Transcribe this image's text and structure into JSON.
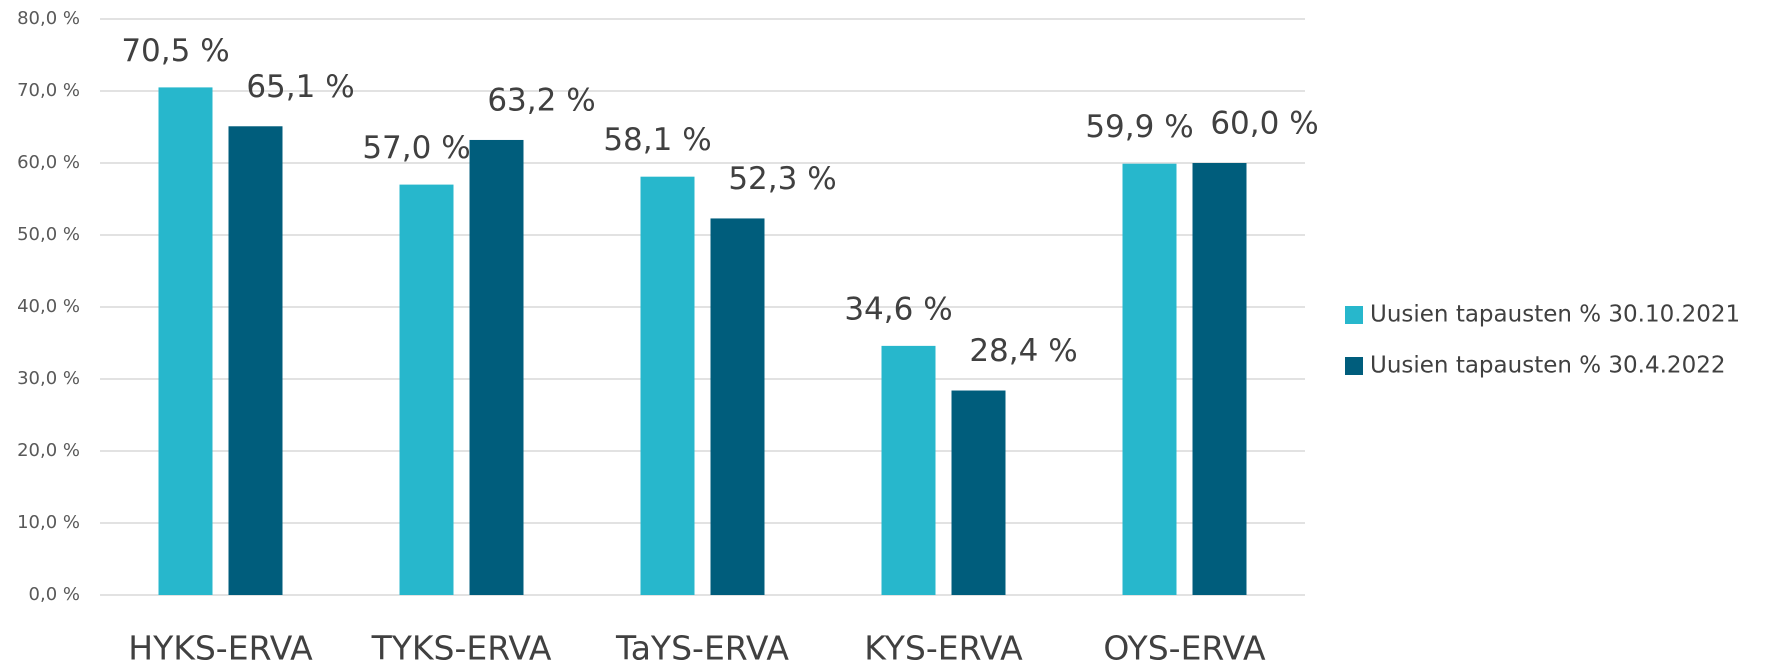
{
  "chart_data": {
    "type": "bar",
    "categories": [
      "HYKS-ERVA",
      "TYKS-ERVA",
      "TaYS-ERVA",
      "KYS-ERVA",
      "OYS-ERVA"
    ],
    "series": [
      {
        "name": "Uusien tapausten % 30.10.2021",
        "color": "#27b7cc",
        "values": [
          70.5,
          57.0,
          58.1,
          34.6,
          59.9
        ],
        "value_labels": [
          "70,5 %",
          "57,0 %",
          "58,1 %",
          "34,6 %",
          "59,9 %"
        ]
      },
      {
        "name": "Uusien tapausten % 30.4.2022",
        "color": "#005d7c",
        "values": [
          65.1,
          63.2,
          52.3,
          28.4,
          60.0
        ],
        "value_labels": [
          "65,1 %",
          "63,2 %",
          "52,3 %",
          "28,4 %",
          "60,0 %"
        ]
      }
    ],
    "ylim": [
      0,
      80
    ],
    "yticks": [
      {
        "value": 0,
        "label": "0,0 %"
      },
      {
        "value": 10,
        "label": "10,0 %"
      },
      {
        "value": 20,
        "label": "20,0 %"
      },
      {
        "value": 30,
        "label": "30,0 %"
      },
      {
        "value": 40,
        "label": "40,0 %"
      },
      {
        "value": 50,
        "label": "50,0 %"
      },
      {
        "value": 60,
        "label": "60,0 %"
      },
      {
        "value": 70,
        "label": "70,0 %"
      },
      {
        "value": 80,
        "label": "80,0 %"
      }
    ],
    "grid": true,
    "legend": "right"
  }
}
